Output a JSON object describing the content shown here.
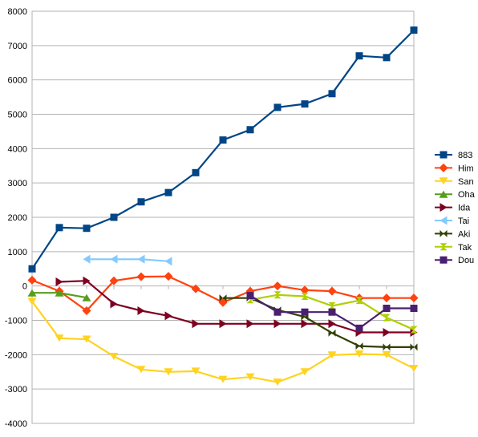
{
  "chart_data": {
    "type": "line",
    "title": "",
    "xlabel": "",
    "ylabel": "",
    "ylim": [
      -4000,
      8000
    ],
    "y_tick_step": 1000,
    "grid": "horizontal",
    "legend": "right",
    "x_count": 15,
    "series": [
      {
        "name": "883",
        "color": "#004586",
        "marker": "square",
        "values": [
          500,
          1700,
          1680,
          2000,
          2450,
          2720,
          3300,
          4250,
          4550,
          5200,
          5300,
          5600,
          6700,
          6650,
          7450
        ]
      },
      {
        "name": "Him",
        "color": "#ff420e",
        "marker": "diamond",
        "values": [
          170,
          -150,
          -720,
          150,
          270,
          280,
          -80,
          -480,
          -150,
          0,
          -120,
          -150,
          -350,
          -350,
          -350
        ]
      },
      {
        "name": "San",
        "color": "#ffd320",
        "marker": "triangle-down",
        "values": [
          -450,
          -1520,
          -1550,
          -2050,
          -2430,
          -2500,
          -2480,
          -2720,
          -2650,
          -2800,
          -2500,
          -2010,
          -1980,
          -2000,
          -2400
        ]
      },
      {
        "name": "Oha",
        "color": "#579d1c",
        "marker": "triangle-up",
        "values": [
          -200,
          -200,
          -340,
          null,
          null,
          null,
          null,
          null,
          null,
          null,
          null,
          null,
          null,
          null,
          null
        ]
      },
      {
        "name": "Ida",
        "color": "#7e0021",
        "marker": "triangle-right",
        "values": [
          null,
          120,
          150,
          -520,
          -720,
          -870,
          -1100,
          -1100,
          -1100,
          -1100,
          -1100,
          -1100,
          -1350,
          -1350,
          -1350
        ]
      },
      {
        "name": "Tai",
        "color": "#83caff",
        "marker": "triangle-left",
        "values": [
          null,
          null,
          780,
          780,
          780,
          720,
          null,
          null,
          null,
          null,
          null,
          null,
          null,
          null,
          null
        ]
      },
      {
        "name": "Aki",
        "color": "#314004",
        "marker": "bowtie",
        "values": [
          null,
          null,
          null,
          null,
          null,
          null,
          null,
          -350,
          -350,
          -700,
          -900,
          -1370,
          -1750,
          -1780,
          -1780
        ]
      },
      {
        "name": "Tak",
        "color": "#aecf00",
        "marker": "hourglass",
        "values": [
          null,
          null,
          null,
          null,
          null,
          null,
          null,
          null,
          -400,
          -260,
          -300,
          -580,
          -420,
          -920,
          -1270
        ]
      },
      {
        "name": "Dou",
        "color": "#4b1f6f",
        "marker": "square",
        "values": [
          null,
          null,
          null,
          null,
          null,
          null,
          null,
          null,
          -280,
          -760,
          -760,
          -760,
          -1230,
          -650,
          -650
        ]
      }
    ]
  }
}
